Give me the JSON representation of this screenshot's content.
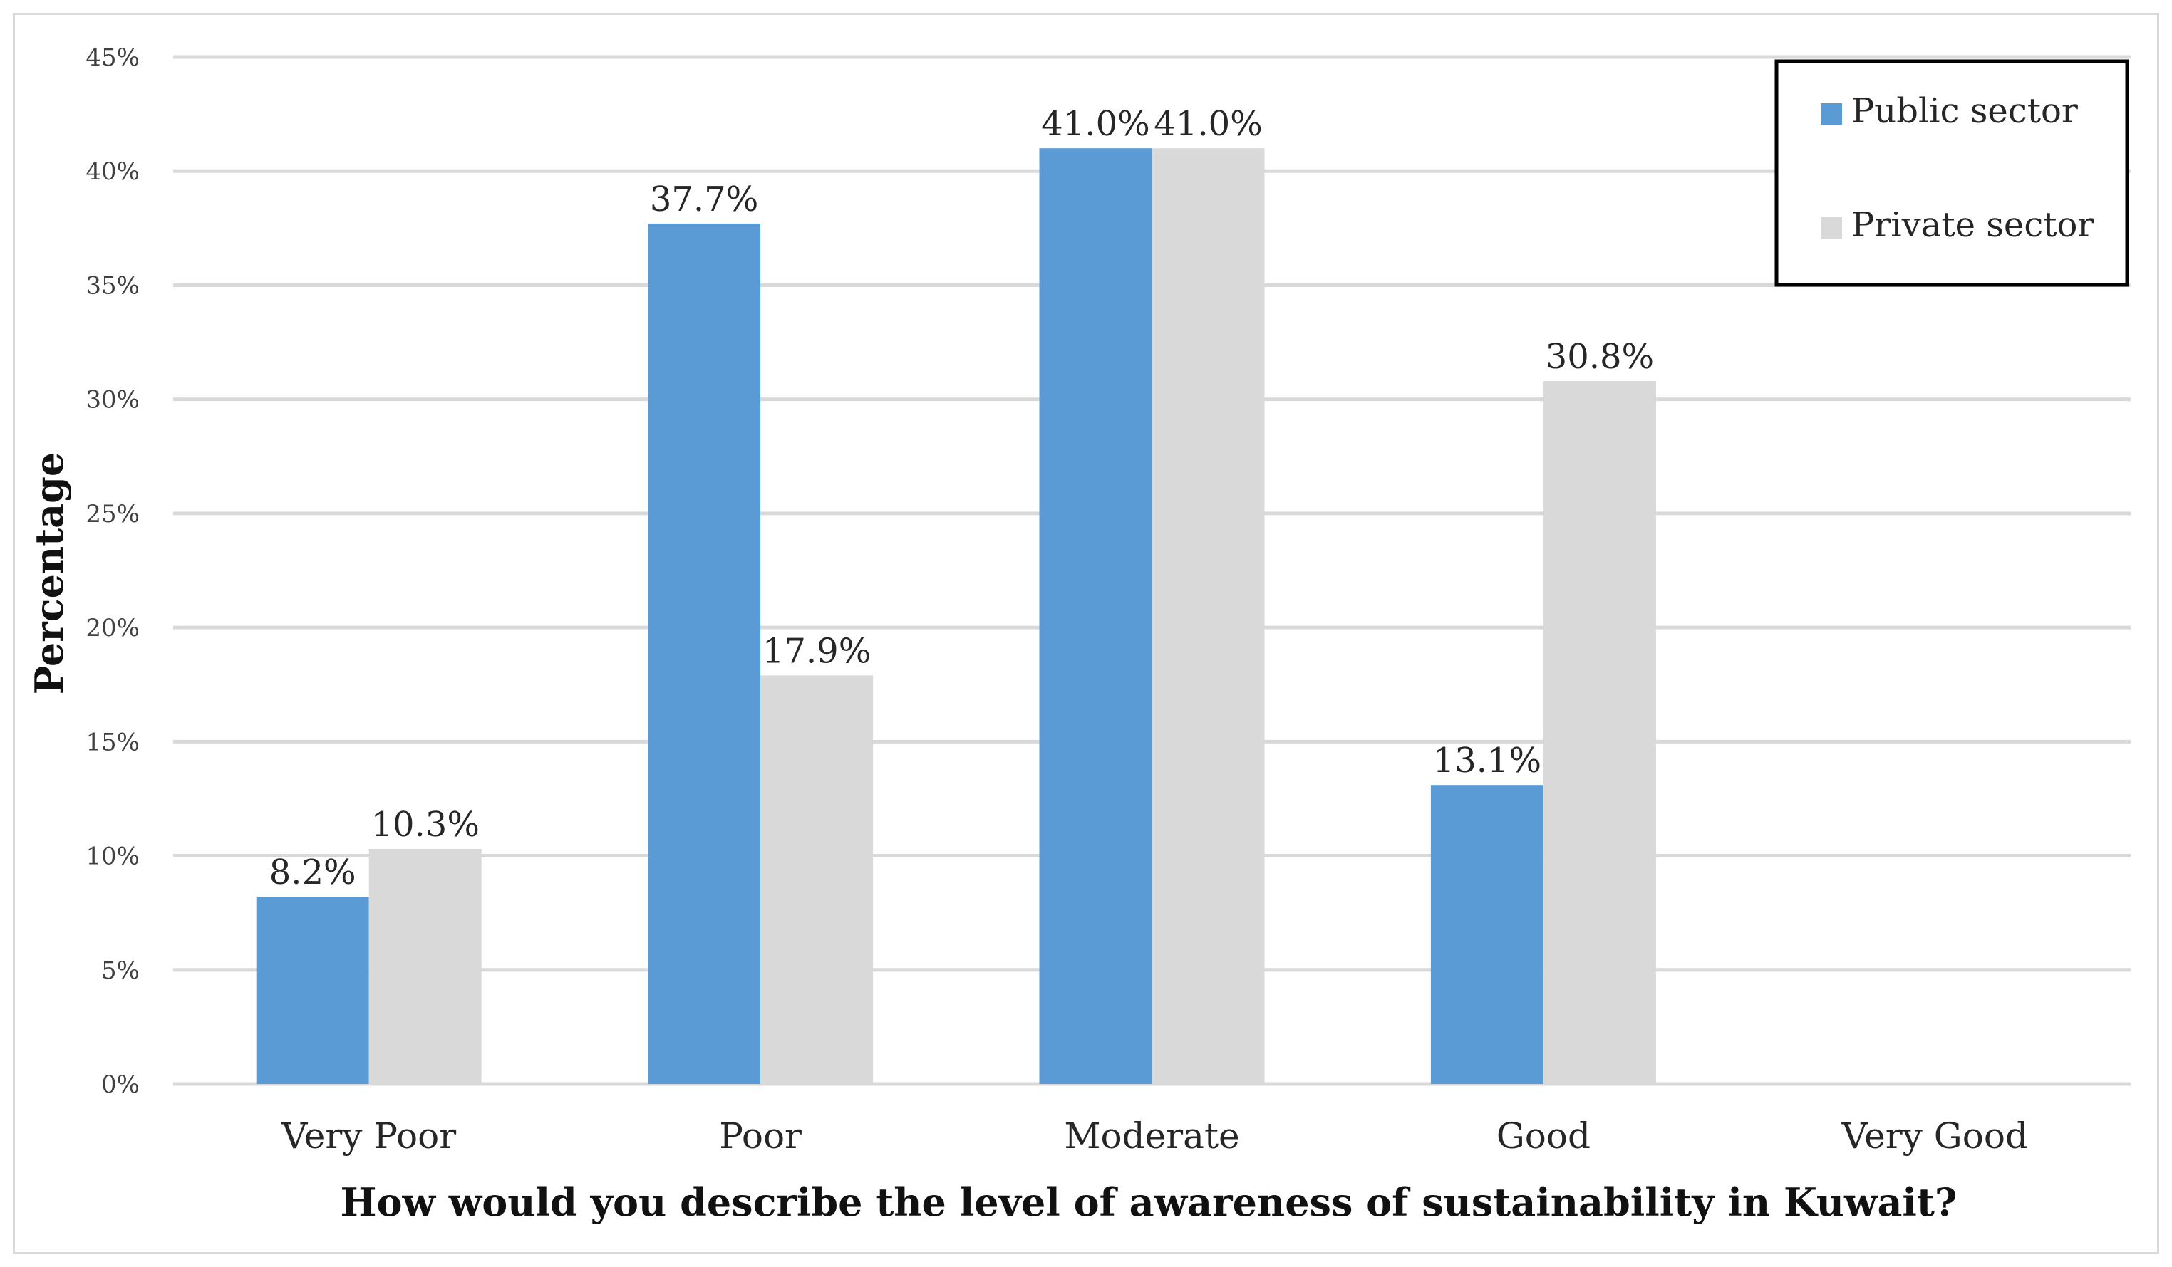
{
  "chart_data": {
    "type": "bar",
    "title": "",
    "xlabel": "How would you describe the level of awareness of sustainability in Kuwait?",
    "ylabel": "Percentage",
    "categories": [
      "Very Poor",
      "Poor",
      "Moderate",
      "Good",
      "Very Good"
    ],
    "series": [
      {
        "name": "Public sector",
        "color": "#5b9bd5",
        "values": [
          8.2,
          37.7,
          41.0,
          13.1,
          null
        ],
        "labels": [
          "8.2%",
          "37.7%",
          "41.0%",
          "13.1%",
          ""
        ]
      },
      {
        "name": "Private sector",
        "color": "#d9d9d9",
        "values": [
          10.3,
          17.9,
          41.0,
          30.8,
          null
        ],
        "labels": [
          "10.3%",
          "17.9%",
          "41.0%",
          "30.8%",
          ""
        ]
      }
    ],
    "ylim": [
      0,
      45
    ],
    "yticks": [
      0,
      5,
      10,
      15,
      20,
      25,
      30,
      35,
      40,
      45
    ],
    "ytick_labels": [
      "0%",
      "5%",
      "10%",
      "15%",
      "20%",
      "25%",
      "30%",
      "35%",
      "40%",
      "45%"
    ],
    "grid": true,
    "legend_position": "top-right"
  }
}
